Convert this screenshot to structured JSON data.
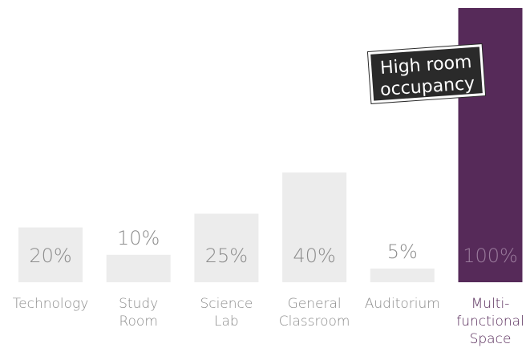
{
  "chart_data": {
    "type": "bar",
    "categories": [
      [
        "Technology"
      ],
      [
        "Study",
        "Room"
      ],
      [
        "Science",
        "Lab"
      ],
      [
        "General",
        "Classroom"
      ],
      [
        "Auditorium"
      ],
      [
        "Multi-",
        "functional",
        "Space"
      ]
    ],
    "values": [
      20,
      10,
      25,
      40,
      5,
      100
    ],
    "value_labels": [
      "20%",
      "10%",
      "25%",
      "40%",
      "5%",
      "100%"
    ],
    "ylim": [
      0,
      100
    ],
    "highlight_index": 5,
    "grid": false,
    "annotations": [
      {
        "text_lines": [
          "High room",
          "occupancy"
        ],
        "target_category_index": 5
      }
    ],
    "colors": {
      "bar": "#ececec",
      "highlight_bar": "#562a59",
      "value_text": "#8c8c8c",
      "value_text_on_highlight": "#9a7b9c",
      "category_text": "#8c8c8c",
      "highlight_category_text": "#562a59",
      "callout_background": "#2a2a2a",
      "callout_text": "#ffffff"
    }
  }
}
